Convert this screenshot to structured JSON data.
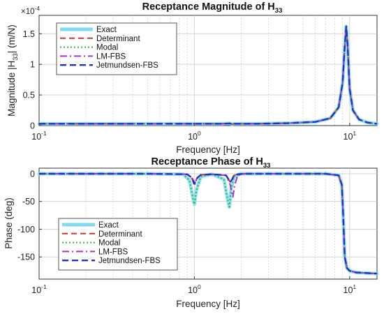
{
  "chart_data": [
    {
      "type": "line",
      "title": "Receptance Magnitude of H",
      "title_sub": "33",
      "xlabel": "Frequency [Hz]",
      "ylabel": "Magnitude |H",
      "ylabel_sub": "33",
      "ylabel_tail": "| (m/N)",
      "exponent_label": "×10",
      "exponent_power": "-4",
      "xscale": "log",
      "xlim": [
        0.1,
        15
      ],
      "ylim": [
        0,
        1.8
      ],
      "grid": true,
      "legend_position": "top-left",
      "x_ticks": [
        {
          "base": "10",
          "exp": "-1",
          "value": 0.1
        },
        {
          "base": "10",
          "exp": "0",
          "value": 1
        },
        {
          "base": "10",
          "exp": "1",
          "value": 10
        }
      ],
      "y_ticks": [
        {
          "label": "0",
          "value": 0
        },
        {
          "label": "0.5",
          "value": 0.5
        },
        {
          "label": "1",
          "value": 1
        },
        {
          "label": "1.5",
          "value": 1.5
        }
      ],
      "series": [
        {
          "name": "Exact",
          "color": "#7fdcf0",
          "dash": "solid",
          "width": 5
        },
        {
          "name": "Determinant",
          "color": "#c0392b",
          "dash": "8,5",
          "width": 2
        },
        {
          "name": "Modal",
          "color": "#3cb043",
          "dash": "2,3",
          "width": 2
        },
        {
          "name": "LM-FBS",
          "color": "#b030c0",
          "dash": "10,4,2,4",
          "width": 2
        },
        {
          "name": "Jetmundsen-FBS",
          "color": "#2030c8",
          "dash": "9,5",
          "width": 2.4
        }
      ],
      "curve": {
        "x": [
          0.1,
          0.3,
          0.6,
          1.0,
          1.5,
          1.7,
          1.75,
          1.8,
          2.5,
          4.0,
          6.0,
          7.5,
          8.5,
          9.0,
          9.3,
          9.5,
          9.7,
          10.0,
          10.5,
          11.5,
          13.0,
          15.0
        ],
        "y": [
          0.03,
          0.03,
          0.03,
          0.03,
          0.03,
          0.035,
          0.02,
          0.03,
          0.03,
          0.04,
          0.06,
          0.12,
          0.3,
          0.7,
          1.3,
          1.62,
          1.3,
          0.6,
          0.25,
          0.1,
          0.05,
          0.03
        ]
      }
    },
    {
      "type": "line",
      "title": "Receptance Phase of H",
      "title_sub": "33",
      "xlabel": "Frequency [Hz]",
      "ylabel": "Phase (deg)",
      "xscale": "log",
      "xlim": [
        0.1,
        15
      ],
      "ylim": [
        -190,
        10
      ],
      "grid": true,
      "legend_position": "bottom-left",
      "x_ticks": [
        {
          "base": "10",
          "exp": "-1",
          "value": 0.1
        },
        {
          "base": "10",
          "exp": "0",
          "value": 1
        },
        {
          "base": "10",
          "exp": "1",
          "value": 10
        }
      ],
      "y_ticks": [
        {
          "label": "0",
          "value": 0
        },
        {
          "label": "-50",
          "value": -50
        },
        {
          "label": "-100",
          "value": -100
        },
        {
          "label": "-150",
          "value": -150
        }
      ],
      "series": [
        {
          "name": "Exact",
          "color": "#7fdcf0",
          "dash": "solid",
          "width": 5
        },
        {
          "name": "Determinant",
          "color": "#c0392b",
          "dash": "8,5",
          "width": 2
        },
        {
          "name": "Modal",
          "color": "#3cb043",
          "dash": "2,3",
          "width": 2
        },
        {
          "name": "LM-FBS",
          "color": "#b030c0",
          "dash": "10,4,2,4",
          "width": 2
        },
        {
          "name": "Jetmundsen-FBS",
          "color": "#2030c8",
          "dash": "9,5",
          "width": 2.4
        }
      ],
      "curves": {
        "Exact": {
          "x": [
            0.1,
            0.5,
            0.85,
            0.93,
            0.98,
            1.0,
            1.03,
            1.1,
            1.3,
            1.55,
            1.62,
            1.68,
            1.72,
            1.8,
            2.0,
            4.0,
            7.0,
            8.5,
            8.9,
            9.1,
            9.3,
            9.6,
            10.0,
            11.0,
            15.0
          ],
          "y": [
            0,
            0,
            -1,
            -12,
            -45,
            -55,
            -30,
            -5,
            -1,
            -10,
            -40,
            -60,
            -30,
            -5,
            0,
            0,
            0,
            -3,
            -20,
            -80,
            -150,
            -170,
            -175,
            -178,
            -180
          ]
        },
        "Modal": {
          "x": [
            0.1,
            0.5,
            0.85,
            0.93,
            0.98,
            1.0,
            1.03,
            1.1,
            1.3,
            1.55,
            1.62,
            1.68,
            1.72,
            1.8,
            2.0,
            4.0,
            7.0,
            8.5,
            8.9,
            9.1,
            9.3,
            9.6,
            10.0,
            11.0,
            15.0
          ],
          "y": [
            0,
            0,
            -1,
            -12,
            -45,
            -55,
            -30,
            -5,
            -1,
            -10,
            -40,
            -60,
            -30,
            -5,
            0,
            0,
            0,
            -3,
            -20,
            -80,
            -150,
            -170,
            -175,
            -178,
            -180
          ]
        },
        "Determinant": {
          "x": [
            0.1,
            0.5,
            0.9,
            0.97,
            1.0,
            1.04,
            1.1,
            1.3,
            1.6,
            1.7,
            1.75,
            1.8,
            1.9,
            2.1,
            4.0,
            7.0,
            8.5,
            8.9,
            9.1,
            9.3,
            9.6,
            10.0,
            11.0,
            15.0
          ],
          "y": [
            0,
            0,
            -1,
            -8,
            -18,
            -8,
            -2,
            -1,
            -3,
            -15,
            -10,
            -3,
            -1,
            0,
            0,
            0,
            -3,
            -20,
            -80,
            -150,
            -170,
            -175,
            -178,
            -180
          ]
        },
        "LM-FBS": {
          "x": [
            0.1,
            0.5,
            0.9,
            0.97,
            1.0,
            1.04,
            1.1,
            1.3,
            1.6,
            1.7,
            1.77,
            1.82,
            1.9,
            2.1,
            4.0,
            7.0,
            8.5,
            8.9,
            9.1,
            9.3,
            9.6,
            10.0,
            11.0,
            15.0
          ],
          "y": [
            0,
            0,
            -1,
            -10,
            -22,
            -8,
            -2,
            -1,
            -3,
            -20,
            -42,
            -20,
            -3,
            0,
            0,
            0,
            -3,
            -20,
            -80,
            -150,
            -170,
            -175,
            -178,
            -180
          ]
        },
        "Jetmundsen-FBS": {
          "x": [
            0.1,
            0.5,
            0.9,
            0.97,
            1.0,
            1.04,
            1.1,
            1.3,
            1.6,
            1.7,
            1.75,
            1.8,
            1.9,
            2.1,
            4.0,
            7.0,
            8.5,
            8.9,
            9.1,
            9.3,
            9.6,
            10.0,
            11.0,
            15.0
          ],
          "y": [
            0,
            0,
            -1,
            -8,
            -18,
            -8,
            -2,
            -1,
            -3,
            -15,
            -10,
            -3,
            -1,
            0,
            0,
            0,
            -3,
            -20,
            -80,
            -150,
            -170,
            -175,
            -178,
            -180
          ]
        }
      }
    }
  ]
}
